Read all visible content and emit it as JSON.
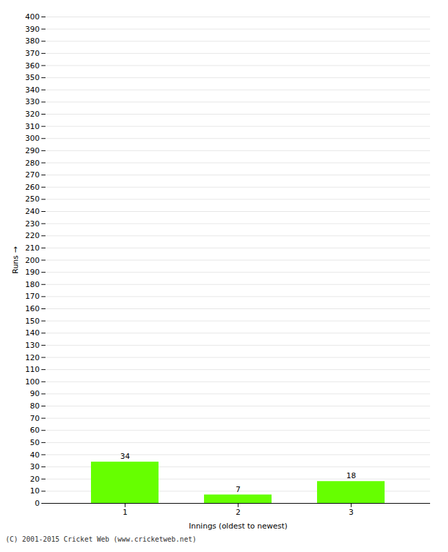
{
  "chart_data": {
    "type": "bar",
    "categories": [
      "1",
      "2",
      "3"
    ],
    "values": [
      34,
      7,
      18
    ],
    "color": "#66ff00",
    "xlabel": "Innings (oldest to newest)",
    "ylabel": "Runs",
    "ylim": [
      0,
      400
    ],
    "yticks": [
      0,
      10,
      20,
      30,
      40,
      50,
      60,
      70,
      80,
      90,
      100,
      110,
      120,
      130,
      140,
      150,
      160,
      170,
      180,
      190,
      200,
      210,
      220,
      230,
      240,
      250,
      260,
      270,
      280,
      290,
      300,
      310,
      320,
      330,
      340,
      350,
      360,
      370,
      380,
      390,
      400
    ],
    "grid": true,
    "data_labels": true,
    "caption": "(C) 2001-2015 Cricket Web (www.cricketweb.net)"
  }
}
